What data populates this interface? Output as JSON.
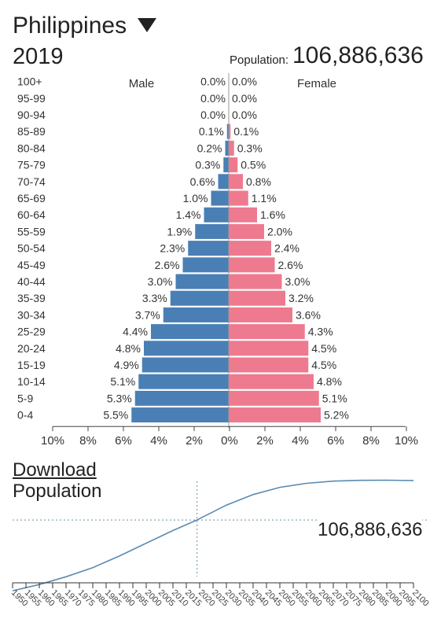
{
  "header": {
    "country": "Philippines",
    "year": "2019",
    "population_label": "Population:",
    "population_value": "106,886,636"
  },
  "chart_data": [
    {
      "type": "bar",
      "orientation": "horizontal",
      "categories": [
        "100+",
        "95-99",
        "90-94",
        "85-89",
        "80-84",
        "75-79",
        "70-74",
        "65-69",
        "60-64",
        "55-59",
        "50-54",
        "45-49",
        "40-44",
        "35-39",
        "30-34",
        "25-29",
        "20-24",
        "15-19",
        "10-14",
        "5-9",
        "0-4"
      ],
      "series": [
        {
          "name": "Male",
          "color": "#4a7fb5",
          "values": [
            0.0,
            0.0,
            0.0,
            0.1,
            0.2,
            0.3,
            0.6,
            1.0,
            1.4,
            1.9,
            2.3,
            2.6,
            3.0,
            3.3,
            3.7,
            4.4,
            4.8,
            4.9,
            5.1,
            5.3,
            5.5
          ]
        },
        {
          "name": "Female",
          "color": "#ee7a8f",
          "values": [
            0.0,
            0.0,
            0.0,
            0.1,
            0.3,
            0.5,
            0.8,
            1.1,
            1.6,
            2.0,
            2.4,
            2.6,
            3.0,
            3.2,
            3.6,
            4.3,
            4.5,
            4.5,
            4.8,
            5.1,
            5.2
          ]
        }
      ],
      "value_suffix": "%",
      "xlim": [
        -10,
        10
      ],
      "x_ticks": [
        "10%",
        "8%",
        "6%",
        "4%",
        "2%",
        "0%",
        "2%",
        "4%",
        "6%",
        "8%",
        "10%"
      ]
    },
    {
      "type": "line",
      "title": "Population",
      "link_label": "Download",
      "x": [
        1950,
        1960,
        1970,
        1980,
        1990,
        2000,
        2010,
        2019,
        2030,
        2040,
        2050,
        2060,
        2070,
        2080,
        2090,
        2100
      ],
      "series": [
        {
          "values": [
            18.6,
            26.3,
            36.0,
            47.4,
            61.9,
            77.9,
            93.7,
            106.9,
            125.4,
            138.6,
            147.6,
            152.6,
            155.4,
            156.4,
            156.5,
            156.2
          ]
        }
      ],
      "marker_x": 2019,
      "marker_label": "106,886,636",
      "xlim": [
        1950,
        2100
      ],
      "x_tick_labels": [
        "1950",
        "1955",
        "1960",
        "1965",
        "1970",
        "1975",
        "1980",
        "1985",
        "1990",
        "1995",
        "2000",
        "2005",
        "2010",
        "2015",
        "2020",
        "2025",
        "2030",
        "2035",
        "2040",
        "2045",
        "2050",
        "2055",
        "2060",
        "2065",
        "2070",
        "2075",
        "2080",
        "2085",
        "2090",
        "2095",
        "2100"
      ],
      "color": "#5a8bb3"
    }
  ]
}
